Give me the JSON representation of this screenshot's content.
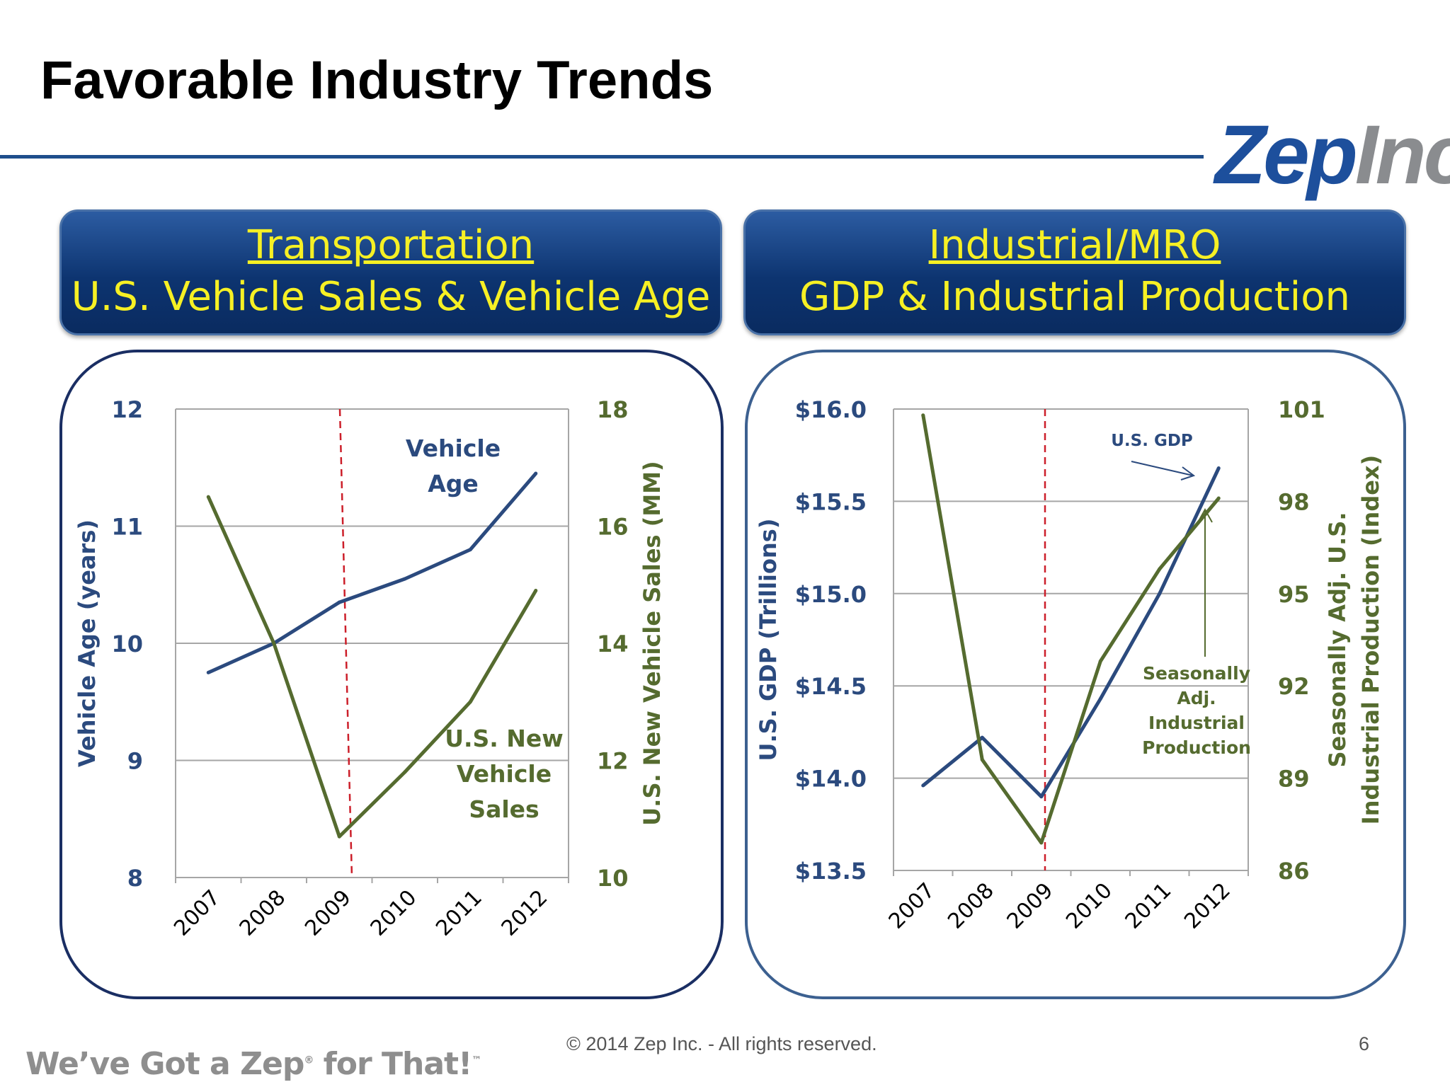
{
  "slide": {
    "title": "Favorable Industry Trends",
    "logo": {
      "part1": "Zep",
      "part2": "Inc"
    },
    "footer_copyright": "© 2014  Zep Inc. - All rights reserved.",
    "page_number": "6",
    "tagline": "We’ve Got a Zep",
    "tagline_mark": "®",
    "tagline_end": " for That!",
    "tagline_tm": "™"
  },
  "banners": {
    "left": {
      "line1": "Transportation",
      "line2": "U.S. Vehicle Sales & Vehicle Age"
    },
    "right": {
      "line1": "Industrial/MRO",
      "line2": "GDP & Industrial Production"
    }
  },
  "colors": {
    "blue": "#2b4a7e",
    "olive": "#556b2f",
    "dashed": "#cc1f2a",
    "grid": "#a6a6a6"
  },
  "chart_data": [
    {
      "type": "line",
      "x": [
        "2007",
        "2008",
        "2009",
        "2010",
        "2011",
        "2012"
      ],
      "y_left_label": "Vehicle Age (years)",
      "y_left_ticks": [
        "12",
        "11",
        "10",
        "9",
        "8"
      ],
      "y_left_range": [
        8,
        12
      ],
      "y_right_label": "U.S. New Vehicle Sales (MM)",
      "y_right_ticks": [
        "18",
        "16",
        "14",
        "12",
        "10"
      ],
      "y_right_range": [
        10,
        18
      ],
      "series": [
        {
          "label_lines": [
            "Vehicle",
            "Age"
          ],
          "axis": "left",
          "color": "#2b4a7e",
          "values": [
            9.75,
            10.0,
            10.35,
            10.55,
            10.8,
            11.45
          ]
        },
        {
          "label_lines": [
            "U.S. New",
            "Vehicle",
            "Sales"
          ],
          "axis": "right",
          "color": "#556b2f",
          "values": [
            16.5,
            14.0,
            10.7,
            11.8,
            13.0,
            14.9
          ]
        }
      ],
      "marker_year": "2009",
      "grid": true
    },
    {
      "type": "line",
      "x": [
        "2007",
        "2008",
        "2009",
        "2010",
        "2011",
        "2012"
      ],
      "y_left_label": "U.S. GDP (Trillions)",
      "y_left_ticks": [
        "$16.0",
        "$15.5",
        "$15.0",
        "$14.5",
        "$14.0",
        "$13.5"
      ],
      "y_left_range": [
        13.5,
        16.0
      ],
      "y_right_label_lines": [
        "Seasonally Adj. U.S.",
        "Industrial Production (Index)"
      ],
      "y_right_ticks": [
        "101",
        "98",
        "95",
        "92",
        "89",
        "86"
      ],
      "y_right_range": [
        86,
        101
      ],
      "series": [
        {
          "label_lines": [
            "U.S. GDP"
          ],
          "axis": "left",
          "color": "#2b4a7e",
          "values": [
            13.96,
            14.22,
            13.9,
            14.43,
            15.0,
            15.68
          ]
        },
        {
          "label_lines": [
            "Seasonally",
            "Adj.",
            "Industrial",
            "Production"
          ],
          "axis": "right",
          "color": "#556b2f",
          "values": [
            100.8,
            89.6,
            86.9,
            92.8,
            95.8,
            98.1
          ]
        }
      ],
      "marker_year": "2009",
      "grid": true
    }
  ]
}
